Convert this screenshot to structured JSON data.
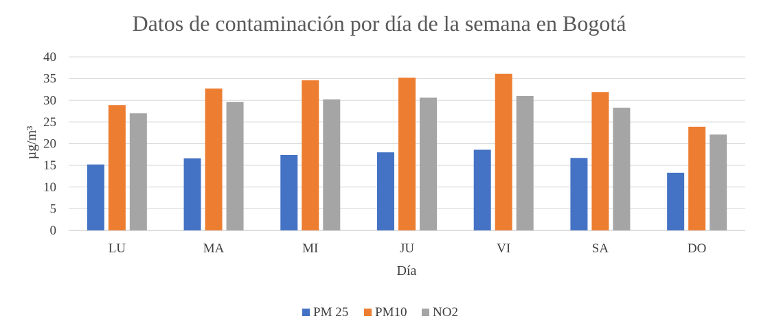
{
  "chart_data": {
    "type": "bar",
    "title": "Datos de contaminación por día de la semana en Bogotá",
    "xlabel": "Día",
    "ylabel": "µg/m³",
    "categories": [
      "LU",
      "MA",
      "MI",
      "JU",
      "VI",
      "SA",
      "DO"
    ],
    "ylim": [
      0,
      40
    ],
    "yticks": [
      0,
      5,
      10,
      15,
      20,
      25,
      30,
      35,
      40
    ],
    "grid": true,
    "legend": "bottom",
    "series": [
      {
        "name": "PM 25",
        "color": "#4472C4",
        "values": [
          15.2,
          16.6,
          17.4,
          18.0,
          18.6,
          16.7,
          13.3
        ]
      },
      {
        "name": "PM10",
        "color": "#ED7D31",
        "values": [
          28.9,
          32.7,
          34.6,
          35.2,
          36.1,
          31.9,
          23.9
        ]
      },
      {
        "name": "NO2",
        "color": "#A5A5A5",
        "values": [
          27.0,
          29.6,
          30.2,
          30.6,
          31.0,
          28.3,
          22.1
        ]
      }
    ]
  }
}
